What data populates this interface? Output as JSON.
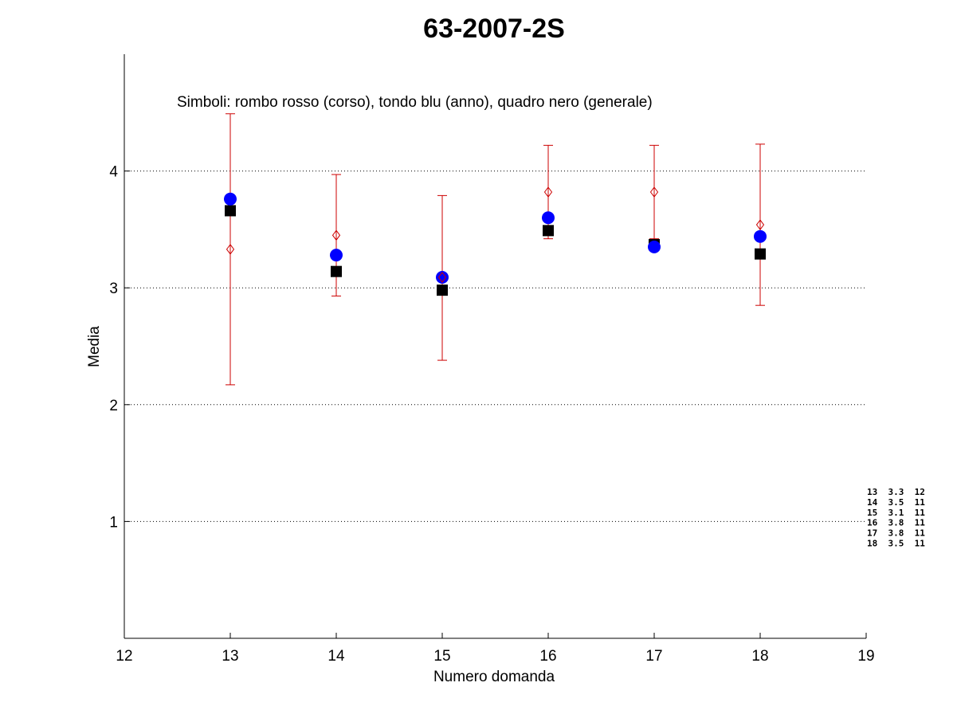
{
  "chart_data": {
    "type": "scatter",
    "title": "63-2007-2S",
    "xlabel": "Numero domanda",
    "ylabel": "Media",
    "xlim": [
      12,
      19
    ],
    "ylim": [
      0,
      5
    ],
    "x_ticks": [
      12,
      13,
      14,
      15,
      16,
      17,
      18,
      19
    ],
    "y_ticks": [
      1,
      2,
      3,
      4
    ],
    "grid": "horizontal dotted",
    "annotation": "Simboli: rombo rosso (corso), tondo blu (anno), quadro nero (generale)",
    "x": [
      13,
      14,
      15,
      16,
      17,
      18
    ],
    "series": [
      {
        "marker": "diamond",
        "color": "#cc0000",
        "values": [
          3.33,
          3.45,
          3.09,
          3.82,
          3.82,
          3.54
        ],
        "error_low": [
          2.17,
          2.93,
          2.38,
          3.42,
          3.42,
          2.85
        ],
        "error_high": [
          4.49,
          3.97,
          3.79,
          4.22,
          4.22,
          4.23
        ]
      },
      {
        "marker": "circle",
        "color": "#0000ff",
        "values": [
          3.76,
          3.28,
          3.09,
          3.6,
          3.35,
          3.44
        ]
      },
      {
        "marker": "square",
        "color": "#000000",
        "values": [
          3.66,
          3.14,
          2.98,
          3.49,
          3.37,
          3.29
        ]
      }
    ],
    "side_table": [
      "13  3.3  12",
      "14  3.5  11",
      "15  3.1  11",
      "16  3.8  11",
      "17  3.8  11",
      "18  3.5  11"
    ]
  }
}
